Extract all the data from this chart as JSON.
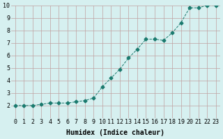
{
  "x": [
    0,
    1,
    2,
    3,
    4,
    5,
    6,
    7,
    8,
    9,
    10,
    11,
    12,
    13,
    14,
    15,
    16,
    17,
    18,
    19,
    20,
    21,
    22,
    23
  ],
  "y": [
    2.0,
    2.0,
    2.0,
    2.1,
    2.2,
    2.2,
    2.2,
    2.3,
    2.4,
    2.6,
    3.5,
    4.2,
    4.9,
    5.8,
    6.5,
    7.3,
    7.3,
    7.2,
    7.8,
    8.6,
    9.8,
    9.8,
    10.0,
    10.0
  ],
  "ylim": [
    1,
    10
  ],
  "xlim": [
    0,
    23
  ],
  "yticks": [
    2,
    3,
    4,
    5,
    6,
    7,
    8,
    9,
    10
  ],
  "xtick_labels": [
    "0",
    "1",
    "2",
    "3",
    "4",
    "5",
    "6",
    "7",
    "8",
    "9",
    "10",
    "11",
    "12",
    "13",
    "14",
    "15",
    "16",
    "17",
    "18",
    "19",
    "20",
    "21",
    "22",
    "23"
  ],
  "xlabel": "Humidex (Indice chaleur)",
  "line_color": "#1a7a6e",
  "marker": "D",
  "marker_size": 2.5,
  "line_width": 0.7,
  "bg_color": "#d6f0f0",
  "grid_color": "#c0a0a0",
  "tick_fontsize": 6,
  "label_fontsize": 7
}
